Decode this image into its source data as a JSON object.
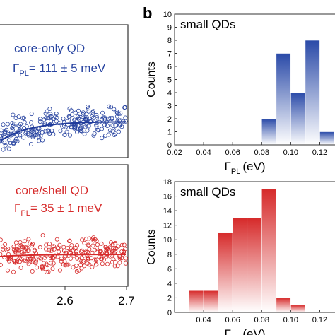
{
  "panel_b_label": "b",
  "chart_data": [
    {
      "type": "scatter",
      "panel": "a-top",
      "annotation_line1": "core-only QD",
      "annotation_gamma": "Γ",
      "annotation_sub": "PL",
      "annotation_value": "= 111 ± 5 meV",
      "color": "#2743a0",
      "fit_color": "#1f3a9a"
    },
    {
      "type": "scatter",
      "panel": "a-bottom",
      "annotation_line1": "core/shell QD",
      "annotation_gamma": "Γ",
      "annotation_sub": "PL",
      "annotation_value": "= 35 ± 1 meV",
      "x_ticks": [
        "2.6",
        "2.7"
      ],
      "color": "#d62a2a",
      "fit_color": "#d62a2a"
    },
    {
      "type": "bar",
      "panel": "b-top",
      "title": "small QDs",
      "xlabel_main": "Γ",
      "xlabel_sub": "PL",
      "xlabel_unit": "(eV)",
      "ylabel": "Counts",
      "xlim": [
        0.02,
        0.13
      ],
      "ylim": [
        0,
        10
      ],
      "x_ticks": [
        "0.02",
        "0.04",
        "0.06",
        "0.08",
        "0.10",
        "0.12"
      ],
      "y_ticks": [
        "0",
        "1",
        "2",
        "3",
        "4",
        "5",
        "6",
        "7",
        "8",
        "9",
        "10"
      ],
      "bins": [
        {
          "start": 0.08,
          "end": 0.09,
          "count": 2
        },
        {
          "start": 0.09,
          "end": 0.1,
          "count": 7
        },
        {
          "start": 0.1,
          "end": 0.11,
          "count": 4
        },
        {
          "start": 0.11,
          "end": 0.12,
          "count": 8
        },
        {
          "start": 0.12,
          "end": 0.13,
          "count": 1
        }
      ],
      "color": "#2a4aa8"
    },
    {
      "type": "bar",
      "panel": "b-bottom",
      "title": "small QDs",
      "xlabel_main": "Γ",
      "xlabel_sub": "PL",
      "xlabel_unit": "(eV)",
      "ylabel": "Counts",
      "xlim": [
        0.02,
        0.13
      ],
      "ylim": [
        0,
        18
      ],
      "x_ticks": [
        "0.04",
        "0.06",
        "0.08",
        "0.10",
        "0.12"
      ],
      "y_ticks": [
        "0",
        "2",
        "4",
        "6",
        "8",
        "10",
        "12",
        "14",
        "16",
        "18"
      ],
      "bins": [
        {
          "start": 0.03,
          "end": 0.04,
          "count": 3
        },
        {
          "start": 0.04,
          "end": 0.05,
          "count": 3
        },
        {
          "start": 0.05,
          "end": 0.06,
          "count": 11
        },
        {
          "start": 0.06,
          "end": 0.07,
          "count": 13
        },
        {
          "start": 0.07,
          "end": 0.08,
          "count": 13
        },
        {
          "start": 0.08,
          "end": 0.09,
          "count": 17
        },
        {
          "start": 0.09,
          "end": 0.1,
          "count": 2
        },
        {
          "start": 0.1,
          "end": 0.11,
          "count": 1
        }
      ],
      "color": "#d62a2a"
    }
  ]
}
